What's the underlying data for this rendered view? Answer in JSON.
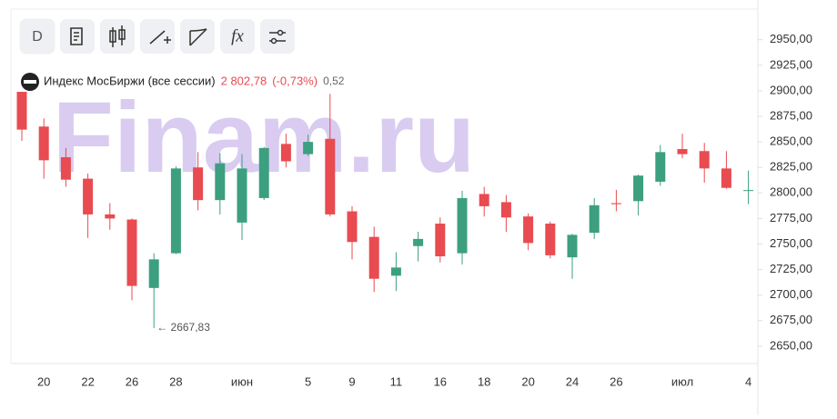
{
  "chart_data": {
    "type": "candlestick",
    "toolbar": [
      "D",
      "fx"
    ],
    "header": {
      "name": "Индекс МосБиржи (все сессии)",
      "price": "2 802,78",
      "change": "(-0,73%)",
      "extra": "0,52"
    },
    "watermark": "Finam.ru",
    "categories": [
      null,
      "20",
      null,
      "22",
      null,
      "26",
      null,
      "28",
      null,
      null,
      "июн",
      null,
      null,
      "5",
      null,
      "9",
      null,
      "11",
      null,
      "16",
      null,
      "18",
      null,
      "20",
      null,
      "24",
      null,
      "26",
      null,
      null,
      "июл",
      null,
      null,
      "4"
    ],
    "open": [
      2899,
      2865,
      2835,
      2814,
      2779,
      2774,
      2707,
      2741,
      2825,
      2793,
      2771,
      2795,
      2848,
      2838,
      2853,
      2782,
      2757,
      2719,
      2748,
      2770,
      2741,
      2799,
      2791,
      2777,
      2770,
      2737,
      2761,
      2790,
      2792,
      2811,
      2843,
      2841,
      2824,
      2802.5
    ],
    "high": [
      2899,
      2873,
      2844,
      2819,
      2790,
      2775,
      2741,
      2826,
      2840,
      2839,
      2838,
      2845,
      2858,
      2857,
      2897,
      2787,
      2767,
      2742,
      2762,
      2776,
      2802,
      2806,
      2798,
      2780,
      2772,
      2760,
      2795,
      2803,
      2818,
      2847,
      2858,
      2849,
      2841,
      2822
    ],
    "low": [
      2851,
      2814,
      2806,
      2756,
      2764,
      2695,
      2667.83,
      2740,
      2783,
      2779,
      2754,
      2793,
      2825,
      2836,
      2777,
      2735,
      2703,
      2704,
      2733,
      2732,
      2730,
      2777,
      2762,
      2744,
      2736,
      2716,
      2755,
      2782,
      2778,
      2807,
      2834,
      2810,
      2804,
      2789
    ],
    "close": [
      2862,
      2832,
      2813,
      2779,
      2775,
      2709,
      2735,
      2824,
      2793,
      2829,
      2824,
      2844,
      2831,
      2850,
      2779,
      2752,
      2716,
      2727,
      2755,
      2738,
      2795,
      2787,
      2776,
      2751,
      2739,
      2759,
      2788,
      2789,
      2817,
      2840,
      2838,
      2824,
      2805,
      2802.78
    ],
    "up_color": "#3c9f80",
    "down_color": "#e84b50",
    "ylim": [
      2633,
      2980
    ],
    "yticks": [
      {
        "value": 2650,
        "label": "2650,00"
      },
      {
        "value": 2675,
        "label": "2675,00"
      },
      {
        "value": 2700,
        "label": "2700,00"
      },
      {
        "value": 2725,
        "label": "2725,00"
      },
      {
        "value": 2750,
        "label": "2750,00"
      },
      {
        "value": 2775,
        "label": "2775,00"
      },
      {
        "value": 2800,
        "label": "2800,00"
      },
      {
        "value": 2825,
        "label": "2825,00"
      },
      {
        "value": 2850,
        "label": "2850,00"
      },
      {
        "value": 2875,
        "label": "2875,00"
      },
      {
        "value": 2900,
        "label": "2900,00"
      },
      {
        "value": 2925,
        "label": "2925,00"
      },
      {
        "value": 2950,
        "label": "2950,00"
      }
    ],
    "annotation": {
      "index": 6,
      "value": 2667.83,
      "label": "← 2667,83"
    },
    "grid": false
  }
}
